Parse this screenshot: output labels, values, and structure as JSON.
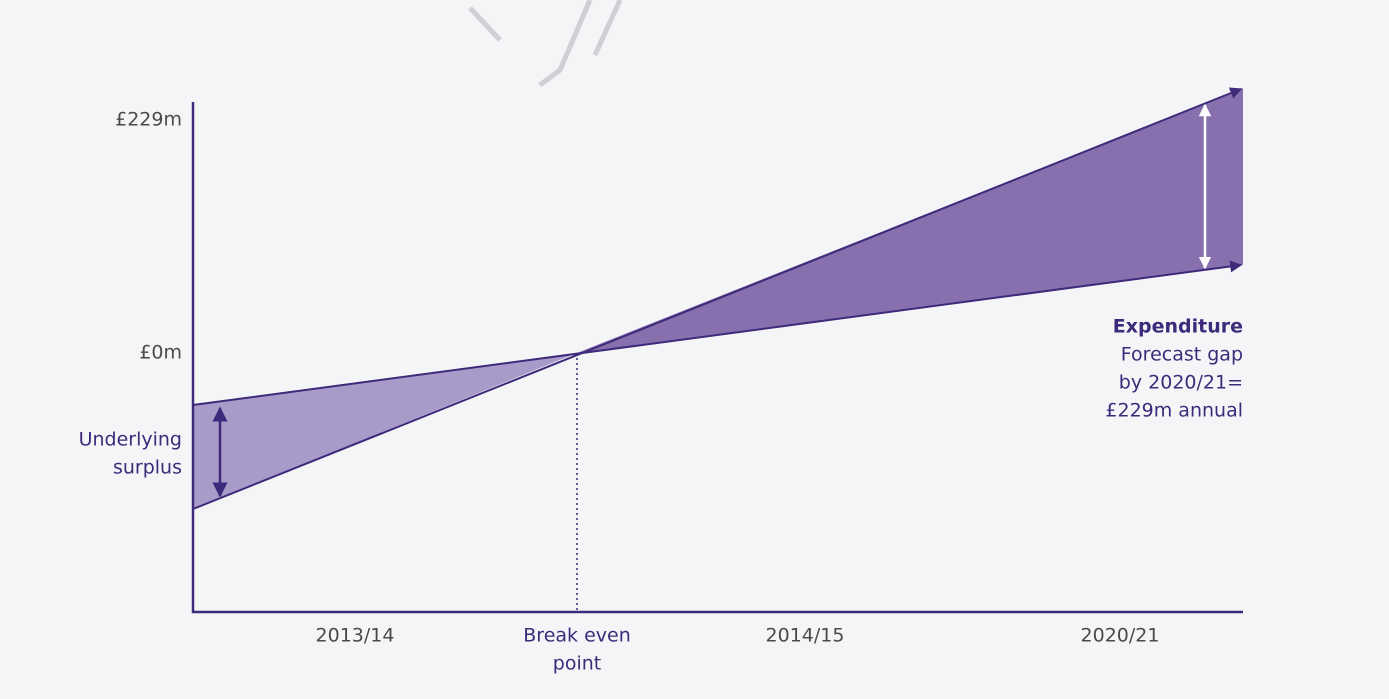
{
  "y_axis": {
    "labels": [
      "£229m",
      "£0m"
    ]
  },
  "x_axis": {
    "labels": [
      "2013/14",
      "2014/15",
      "2020/21"
    ],
    "break_even": [
      "Break even",
      "point"
    ]
  },
  "annotations": {
    "surplus": [
      "Underlying",
      "surplus"
    ],
    "expenditure": {
      "title": "Expenditure",
      "lines": [
        "Forecast gap",
        "by 2020/21=",
        "£229m annual"
      ]
    }
  }
}
